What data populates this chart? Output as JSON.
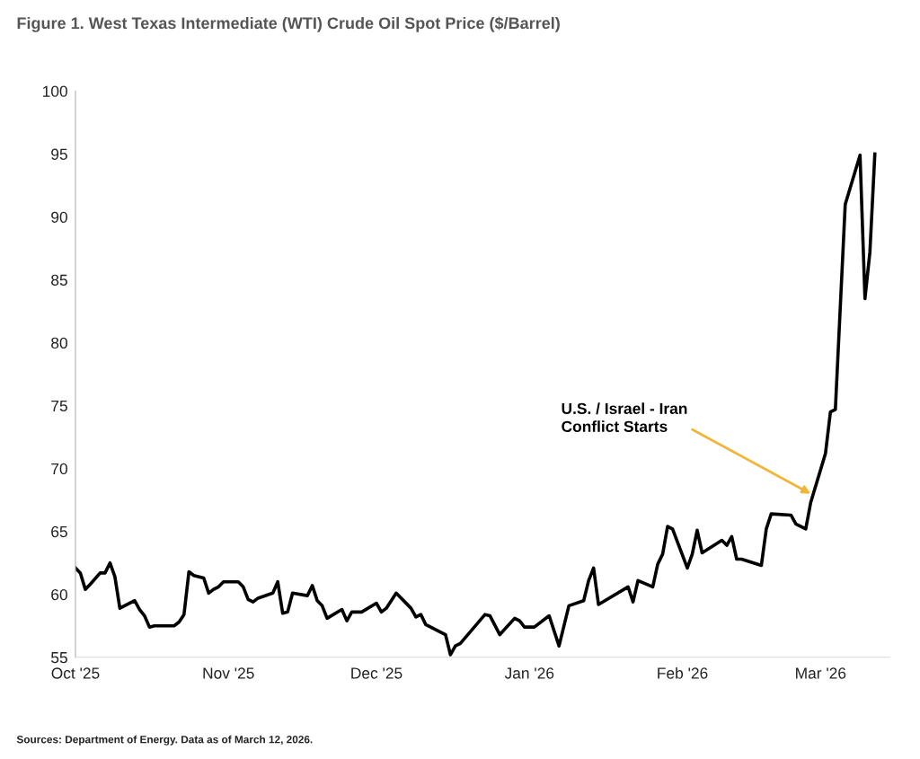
{
  "chart_data": {
    "type": "line",
    "title": "Figure 1. West Texas Intermediate (WTI) Crude Oil Spot Price ($/Barrel)",
    "xlim": [
      "2025-10-01",
      "2026-03-15"
    ],
    "xticks": [
      {
        "value": "2025-10-01",
        "label": "Oct '25"
      },
      {
        "value": "2025-11-01",
        "label": "Nov '25"
      },
      {
        "value": "2025-12-01",
        "label": "Dec '25"
      },
      {
        "value": "2026-01-01",
        "label": "Jan '26"
      },
      {
        "value": "2026-02-01",
        "label": "Feb '26"
      },
      {
        "value": "2026-03-01",
        "label": "Mar '26"
      }
    ],
    "ylim": [
      55,
      100
    ],
    "yticks": [
      55,
      60,
      65,
      70,
      75,
      80,
      85,
      90,
      95,
      100
    ],
    "grid": false,
    "marker": "none",
    "line_style": "solid",
    "x": [
      "2025-10-01",
      "2025-10-02",
      "2025-10-03",
      "2025-10-04",
      "2025-10-06",
      "2025-10-07",
      "2025-10-08",
      "2025-10-09",
      "2025-10-10",
      "2025-10-13",
      "2025-10-14",
      "2025-10-15",
      "2025-10-16",
      "2025-10-17",
      "2025-10-21",
      "2025-10-22",
      "2025-10-23",
      "2025-10-24",
      "2025-10-25",
      "2025-10-27",
      "2025-10-28",
      "2025-10-29",
      "2025-10-30",
      "2025-10-31",
      "2025-11-03",
      "2025-11-04",
      "2025-11-05",
      "2025-11-06",
      "2025-11-07",
      "2025-11-10",
      "2025-11-11",
      "2025-11-12",
      "2025-11-13",
      "2025-11-14",
      "2025-11-17",
      "2025-11-18",
      "2025-11-19",
      "2025-11-20",
      "2025-11-21",
      "2025-11-24",
      "2025-11-25",
      "2025-11-26",
      "2025-11-28",
      "2025-12-01",
      "2025-12-02",
      "2025-12-03",
      "2025-12-05",
      "2025-12-08",
      "2025-12-09",
      "2025-12-10",
      "2025-12-11",
      "2025-12-15",
      "2025-12-16",
      "2025-12-17",
      "2025-12-18",
      "2025-12-23",
      "2025-12-24",
      "2025-12-26",
      "2025-12-29",
      "2025-12-30",
      "2025-12-31",
      "2026-01-02",
      "2026-01-05",
      "2026-01-07",
      "2026-01-09",
      "2026-01-12",
      "2026-01-13",
      "2026-01-14",
      "2026-01-15",
      "2026-01-21",
      "2026-01-22",
      "2026-01-23",
      "2026-01-26",
      "2026-01-27",
      "2026-01-28",
      "2026-01-29",
      "2026-01-30",
      "2026-02-02",
      "2026-02-03",
      "2026-02-04",
      "2026-02-05",
      "2026-02-09",
      "2026-02-10",
      "2026-02-11",
      "2026-02-12",
      "2026-02-13",
      "2026-02-17",
      "2026-02-18",
      "2026-02-19",
      "2026-02-23",
      "2026-02-24",
      "2026-02-26",
      "2026-02-27",
      "2026-03-02",
      "2026-03-03",
      "2026-03-04",
      "2026-03-06",
      "2026-03-09",
      "2026-03-10",
      "2026-03-11",
      "2026-03-12"
    ],
    "series": [
      {
        "color": "#000000",
        "values": [
          62.1,
          61.7,
          60.4,
          60.8,
          61.7,
          61.7,
          62.5,
          61.4,
          58.9,
          59.5,
          58.8,
          58.3,
          57.4,
          57.5,
          57.5,
          57.8,
          58.4,
          61.8,
          61.5,
          61.3,
          60.1,
          60.4,
          60.6,
          61.0,
          61.0,
          60.6,
          59.6,
          59.4,
          59.7,
          60.1,
          61.0,
          58.5,
          58.6,
          60.1,
          59.9,
          60.7,
          59.5,
          59.1,
          58.1,
          58.8,
          57.9,
          58.6,
          58.6,
          59.3,
          58.6,
          58.9,
          60.1,
          58.9,
          58.2,
          58.4,
          57.6,
          56.8,
          55.2,
          55.9,
          56.1,
          58.4,
          58.3,
          56.8,
          58.1,
          57.9,
          57.4,
          57.4,
          58.3,
          55.9,
          59.1,
          59.5,
          61.1,
          62.1,
          59.2,
          60.6,
          59.4,
          61.1,
          60.6,
          62.4,
          63.2,
          65.4,
          65.2,
          62.1,
          63.2,
          65.1,
          63.3,
          64.3,
          63.9,
          64.6,
          62.8,
          62.8,
          62.3,
          65.2,
          66.4,
          66.3,
          65.6,
          65.2,
          67.3,
          71.2,
          74.5,
          74.7,
          91.0,
          94.9,
          83.5,
          87.2,
          95.0
        ]
      }
    ],
    "annotations": [
      {
        "text": "U.S. / Israel - Iran\nConflict Starts",
        "x": "2026-02-27",
        "y": 68
      },
      "Sources: Department of Energy. Data as of March 12, 2026."
    ]
  }
}
